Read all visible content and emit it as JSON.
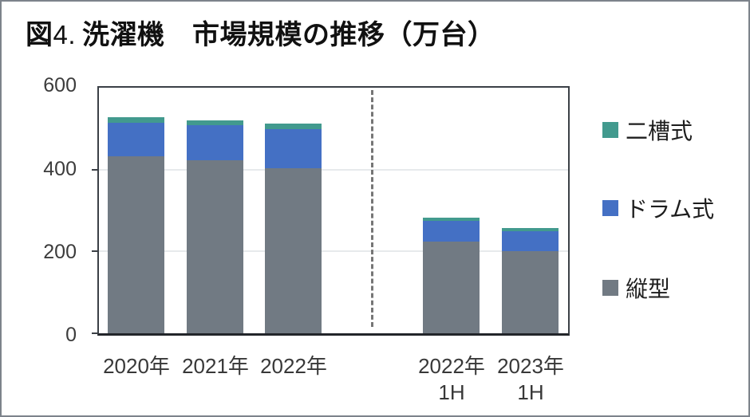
{
  "figure": {
    "fig_label": "図",
    "fig_number": "4.",
    "title": "洗濯機　市場規模の推移（万台）"
  },
  "chart_data": {
    "type": "bar",
    "subtype": "stacked",
    "title": "洗濯機　市場規模の推移（万台）",
    "unit": "万台",
    "categories": [
      {
        "label": "2020年",
        "sublabel": "",
        "group": 0
      },
      {
        "label": "2021年",
        "sublabel": "",
        "group": 0
      },
      {
        "label": "2022年",
        "sublabel": "",
        "group": 0
      },
      {
        "label": "2022年",
        "sublabel": "1H",
        "group": 1
      },
      {
        "label": "2023年",
        "sublabel": "1H",
        "group": 1
      }
    ],
    "series": [
      {
        "name": "縦型",
        "key": "vertical-type",
        "color": "#717a83",
        "values": [
          433,
          422,
          403,
          225,
          200
        ]
      },
      {
        "name": "ドラム式",
        "key": "drum-type",
        "color": "#4470c4",
        "values": [
          81,
          86,
          95,
          49,
          50
        ]
      },
      {
        "name": "二槽式",
        "key": "twin-tub",
        "color": "#429a8e",
        "values": [
          13,
          13,
          14,
          8,
          7
        ]
      }
    ],
    "ylim": [
      0,
      600
    ],
    "yticks": [
      0,
      200,
      400,
      600
    ],
    "grid": "horizontal",
    "legend_position": "right",
    "separator_between": [
      "2022年",
      "2022年 1H"
    ]
  },
  "legend": {
    "items": [
      {
        "label": "二槽式",
        "color": "#429a8e"
      },
      {
        "label": "ドラム式",
        "color": "#4470c4"
      },
      {
        "label": "縦型",
        "color": "#717a83"
      }
    ]
  }
}
